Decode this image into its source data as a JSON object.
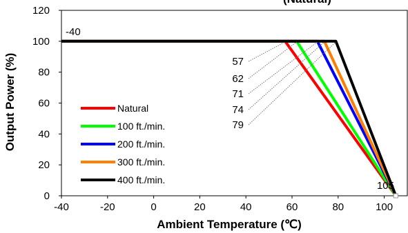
{
  "chart_data": {
    "type": "line",
    "title": "(Natural)",
    "xlabel": "Ambient Temperature (℃)",
    "ylabel": "Output Power (%)",
    "xlim": [
      -40,
      110
    ],
    "ylim": [
      0,
      120
    ],
    "x_ticks": [
      "-40",
      "-20",
      "0",
      "20",
      "40",
      "60",
      "80",
      "100"
    ],
    "y_ticks": [
      "0",
      "20",
      "40",
      "60",
      "80",
      "100",
      "120"
    ],
    "grid": false,
    "legend_position": "bottom-left",
    "series": [
      {
        "name": "Natural",
        "color": "#ff0000",
        "x": [
          -40,
          57,
          105
        ],
        "y": [
          100,
          100,
          0
        ]
      },
      {
        "name": "100 ft./min.",
        "color": "#00ff00",
        "x": [
          -40,
          62,
          105
        ],
        "y": [
          100,
          100,
          0
        ]
      },
      {
        "name": "200 ft./min.",
        "color": "#0000ff",
        "x": [
          -40,
          71,
          105
        ],
        "y": [
          100,
          100,
          0
        ]
      },
      {
        "name": "300 ft./min.",
        "color": "#ff7f00",
        "x": [
          -40,
          74,
          105
        ],
        "y": [
          100,
          100,
          0
        ]
      },
      {
        "name": "400 ft./min.",
        "color": "#000000",
        "x": [
          -40,
          79,
          105
        ],
        "y": [
          100,
          100,
          0
        ]
      }
    ],
    "annotations": [
      {
        "text": "-40",
        "x": -40,
        "y": 100
      },
      {
        "text": "57",
        "x": 57,
        "y": 100
      },
      {
        "text": "62",
        "x": 62,
        "y": 100
      },
      {
        "text": "71",
        "x": 71,
        "y": 100
      },
      {
        "text": "74",
        "x": 74,
        "y": 100
      },
      {
        "text": "79",
        "x": 79,
        "y": 100
      },
      {
        "text": "105",
        "x": 105,
        "y": 0
      }
    ]
  }
}
